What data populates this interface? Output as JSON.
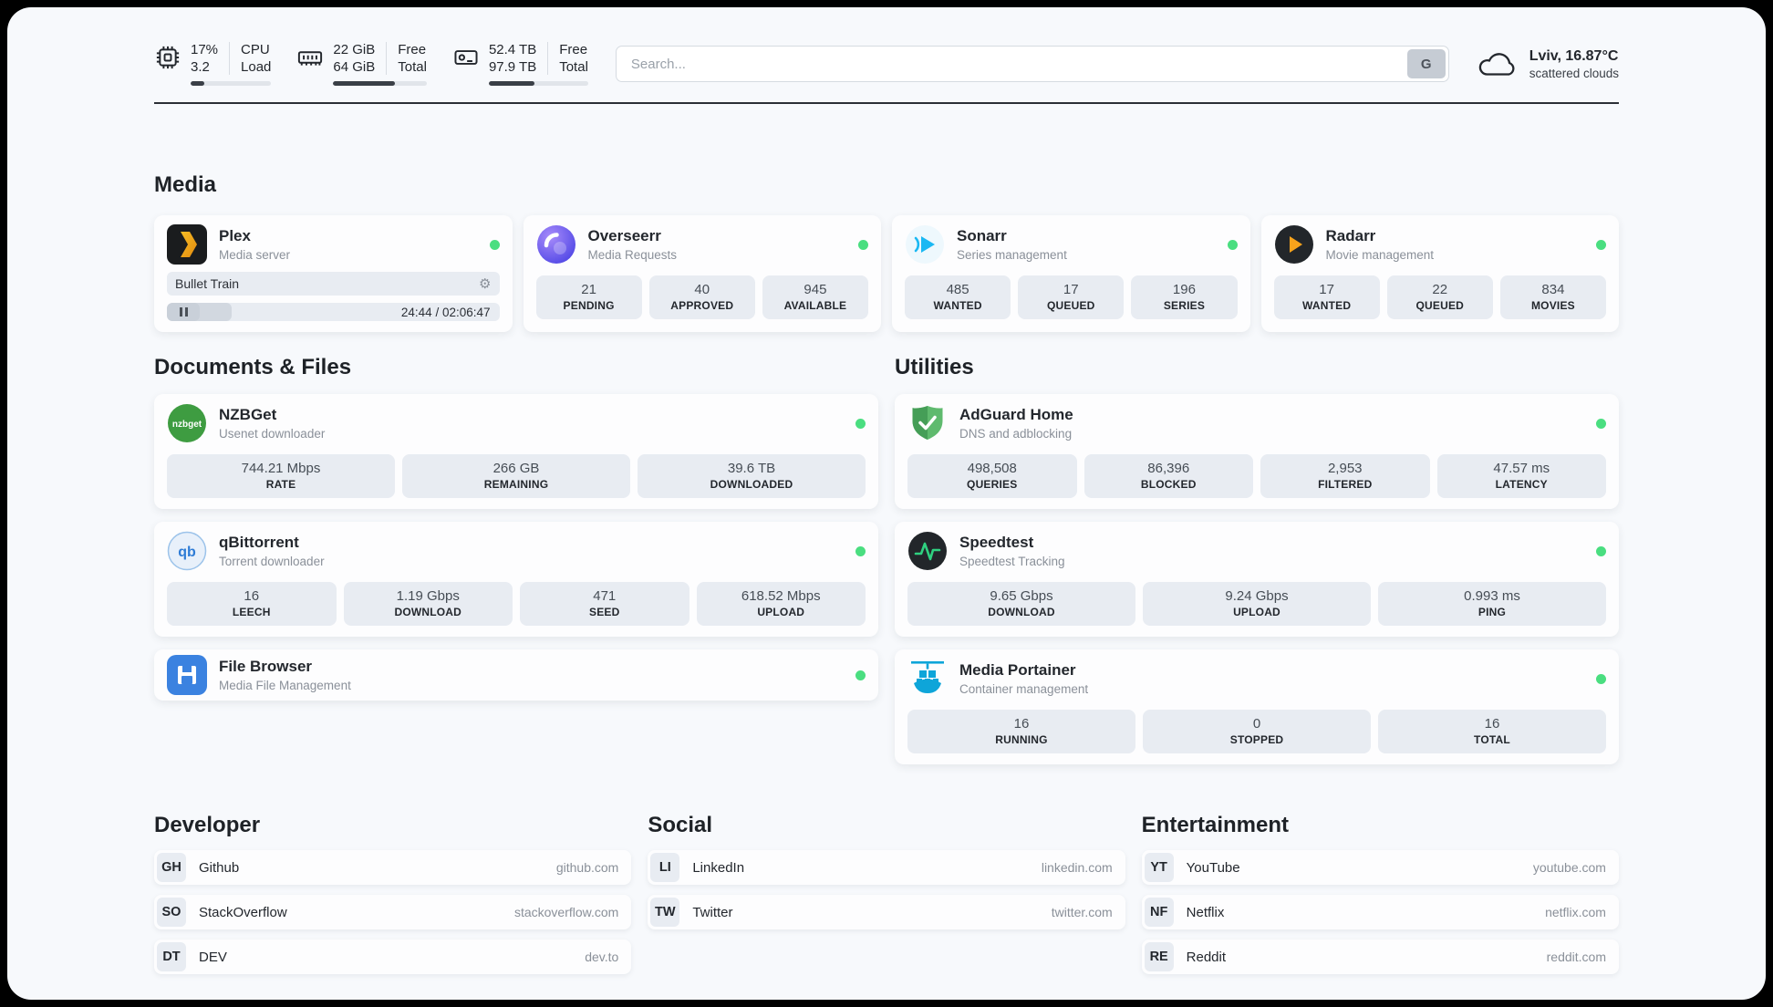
{
  "colors": {
    "status_online": "#4ade80",
    "page_bg": "#f7f9fc",
    "stat_box_bg": "#e8ecf2",
    "plex_yellow": "#e5a00d",
    "radarr_orange": "#f7a31c",
    "sonarr_blue": "#1ab8f3",
    "portainer_blue": "#0ea5d9",
    "adguard_green": "#5fba6e"
  },
  "icons": {
    "gear": "⚙"
  },
  "header": {
    "cpu": {
      "icon": "cpu-chip-icon",
      "line1": "17%",
      "line2": "3.2",
      "label1": "CPU",
      "label2": "Load",
      "progress": 17
    },
    "ram": {
      "icon": "memory-icon",
      "line1": "22 GiB",
      "line2": "64 GiB",
      "label1": "Free",
      "label2": "Total",
      "progress": 66
    },
    "disk": {
      "icon": "hard-drive-icon",
      "line1": "52.4 TB",
      "line2": "97.9 TB",
      "label1": "Free",
      "label2": "Total",
      "progress": 46
    },
    "search": {
      "placeholder": "Search...",
      "button_label": "G"
    },
    "weather": {
      "icon": "cloud-icon",
      "location": "Lviv, 16.87°C",
      "condition": "scattered clouds"
    }
  },
  "media": {
    "title": "Media",
    "plex": {
      "name": "Plex",
      "subtitle": "Media server",
      "now_playing": "Bullet Train",
      "time": "24:44 / 02:06:47",
      "progress": 19.5
    },
    "overseerr": {
      "name": "Overseerr",
      "subtitle": "Media Requests",
      "stats": [
        {
          "value": "21",
          "label": "PENDING"
        },
        {
          "value": "40",
          "label": "APPROVED"
        },
        {
          "value": "945",
          "label": "AVAILABLE"
        }
      ]
    },
    "sonarr": {
      "name": "Sonarr",
      "subtitle": "Series management",
      "stats": [
        {
          "value": "485",
          "label": "WANTED"
        },
        {
          "value": "17",
          "label": "QUEUED"
        },
        {
          "value": "196",
          "label": "SERIES"
        }
      ]
    },
    "radarr": {
      "name": "Radarr",
      "subtitle": "Movie management",
      "stats": [
        {
          "value": "17",
          "label": "WANTED"
        },
        {
          "value": "22",
          "label": "QUEUED"
        },
        {
          "value": "834",
          "label": "MOVIES"
        }
      ]
    }
  },
  "documents": {
    "title": "Documents & Files",
    "nzbget": {
      "name": "NZBGet",
      "subtitle": "Usenet downloader",
      "icon_text": "nzbget",
      "stats": [
        {
          "value": "744.21 Mbps",
          "label": "RATE"
        },
        {
          "value": "266 GB",
          "label": "REMAINING"
        },
        {
          "value": "39.6 TB",
          "label": "DOWNLOADED"
        }
      ]
    },
    "qbittorrent": {
      "name": "qBittorrent",
      "subtitle": "Torrent downloader",
      "icon_text": "qb",
      "stats": [
        {
          "value": "16",
          "label": "LEECH"
        },
        {
          "value": "1.19 Gbps",
          "label": "DOWNLOAD"
        },
        {
          "value": "471",
          "label": "SEED"
        },
        {
          "value": "618.52 Mbps",
          "label": "UPLOAD"
        }
      ]
    },
    "filebrowser": {
      "name": "File Browser",
      "subtitle": "Media File Management"
    }
  },
  "utilities": {
    "title": "Utilities",
    "adguard": {
      "name": "AdGuard Home",
      "subtitle": "DNS and adblocking",
      "stats": [
        {
          "value": "498,508",
          "label": "QUERIES"
        },
        {
          "value": "86,396",
          "label": "BLOCKED"
        },
        {
          "value": "2,953",
          "label": "FILTERED"
        },
        {
          "value": "47.57 ms",
          "label": "LATENCY"
        }
      ]
    },
    "speedtest": {
      "name": "Speedtest",
      "subtitle": "Speedtest Tracking",
      "stats": [
        {
          "value": "9.65 Gbps",
          "label": "DOWNLOAD"
        },
        {
          "value": "9.24 Gbps",
          "label": "UPLOAD"
        },
        {
          "value": "0.993 ms",
          "label": "PING"
        }
      ]
    },
    "portainer": {
      "name": "Media Portainer",
      "subtitle": "Container management",
      "stats": [
        {
          "value": "16",
          "label": "RUNNING"
        },
        {
          "value": "0",
          "label": "STOPPED"
        },
        {
          "value": "16",
          "label": "TOTAL"
        }
      ]
    }
  },
  "bookmarks": {
    "developer": {
      "title": "Developer",
      "items": [
        {
          "abbr": "GH",
          "name": "Github",
          "url": "github.com"
        },
        {
          "abbr": "SO",
          "name": "StackOverflow",
          "url": "stackoverflow.com"
        },
        {
          "abbr": "DT",
          "name": "DEV",
          "url": "dev.to"
        }
      ]
    },
    "social": {
      "title": "Social",
      "items": [
        {
          "abbr": "LI",
          "name": "LinkedIn",
          "url": "linkedin.com"
        },
        {
          "abbr": "TW",
          "name": "Twitter",
          "url": "twitter.com"
        }
      ]
    },
    "entertainment": {
      "title": "Entertainment",
      "items": [
        {
          "abbr": "YT",
          "name": "YouTube",
          "url": "youtube.com"
        },
        {
          "abbr": "NF",
          "name": "Netflix",
          "url": "netflix.com"
        },
        {
          "abbr": "RE",
          "name": "Reddit",
          "url": "reddit.com"
        }
      ]
    }
  }
}
